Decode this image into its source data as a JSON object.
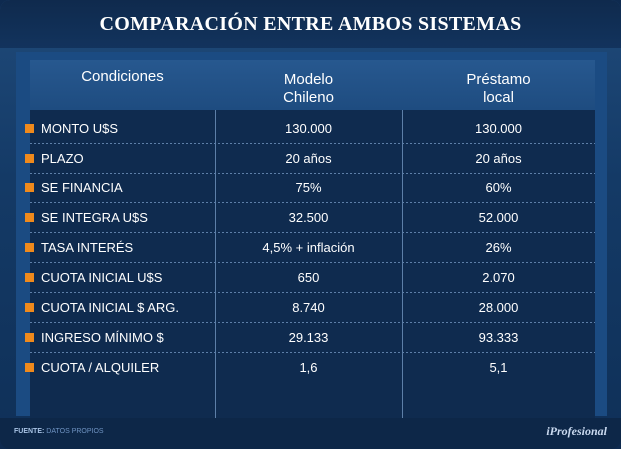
{
  "title": "COMPARACIÓN ENTRE AMBOS SISTEMAS",
  "columns": {
    "c1": "Condiciones",
    "c2_line1": "Modelo",
    "c2_line2": "Chileno",
    "c3_line1": "Préstamo",
    "c3_line2": "local"
  },
  "rows": [
    {
      "label": "MONTO U$S",
      "modelo": "130.000",
      "local": "130.000"
    },
    {
      "label": "PLAZO",
      "modelo": "20 años",
      "local": "20 años"
    },
    {
      "label": "SE FINANCIA",
      "modelo": "75%",
      "local": "60%"
    },
    {
      "label": "SE INTEGRA U$S",
      "modelo": "32.500",
      "local": "52.000"
    },
    {
      "label": "TASA INTERÉS",
      "modelo": "4,5% + inflación",
      "local": "26%"
    },
    {
      "label": "CUOTA INICIAL U$S",
      "modelo": "650",
      "local": "2.070"
    },
    {
      "label": "CUOTA INICIAL $ ARG.",
      "modelo": "8.740",
      "local": "28.000"
    },
    {
      "label": "INGRESO MÍNIMO $",
      "modelo": "29.133",
      "local": "93.333"
    },
    {
      "label": "CUOTA / ALQUILER",
      "modelo": "1,6",
      "local": "5,1"
    }
  ],
  "footer": {
    "source_label": "FUENTE:",
    "source_value": "DATOS PROPIOS",
    "brand": "iProfesional"
  },
  "colors": {
    "bullet": "#f08a1c",
    "title_bar": "#0f2a4d",
    "table_body": "#0f2b4f"
  }
}
